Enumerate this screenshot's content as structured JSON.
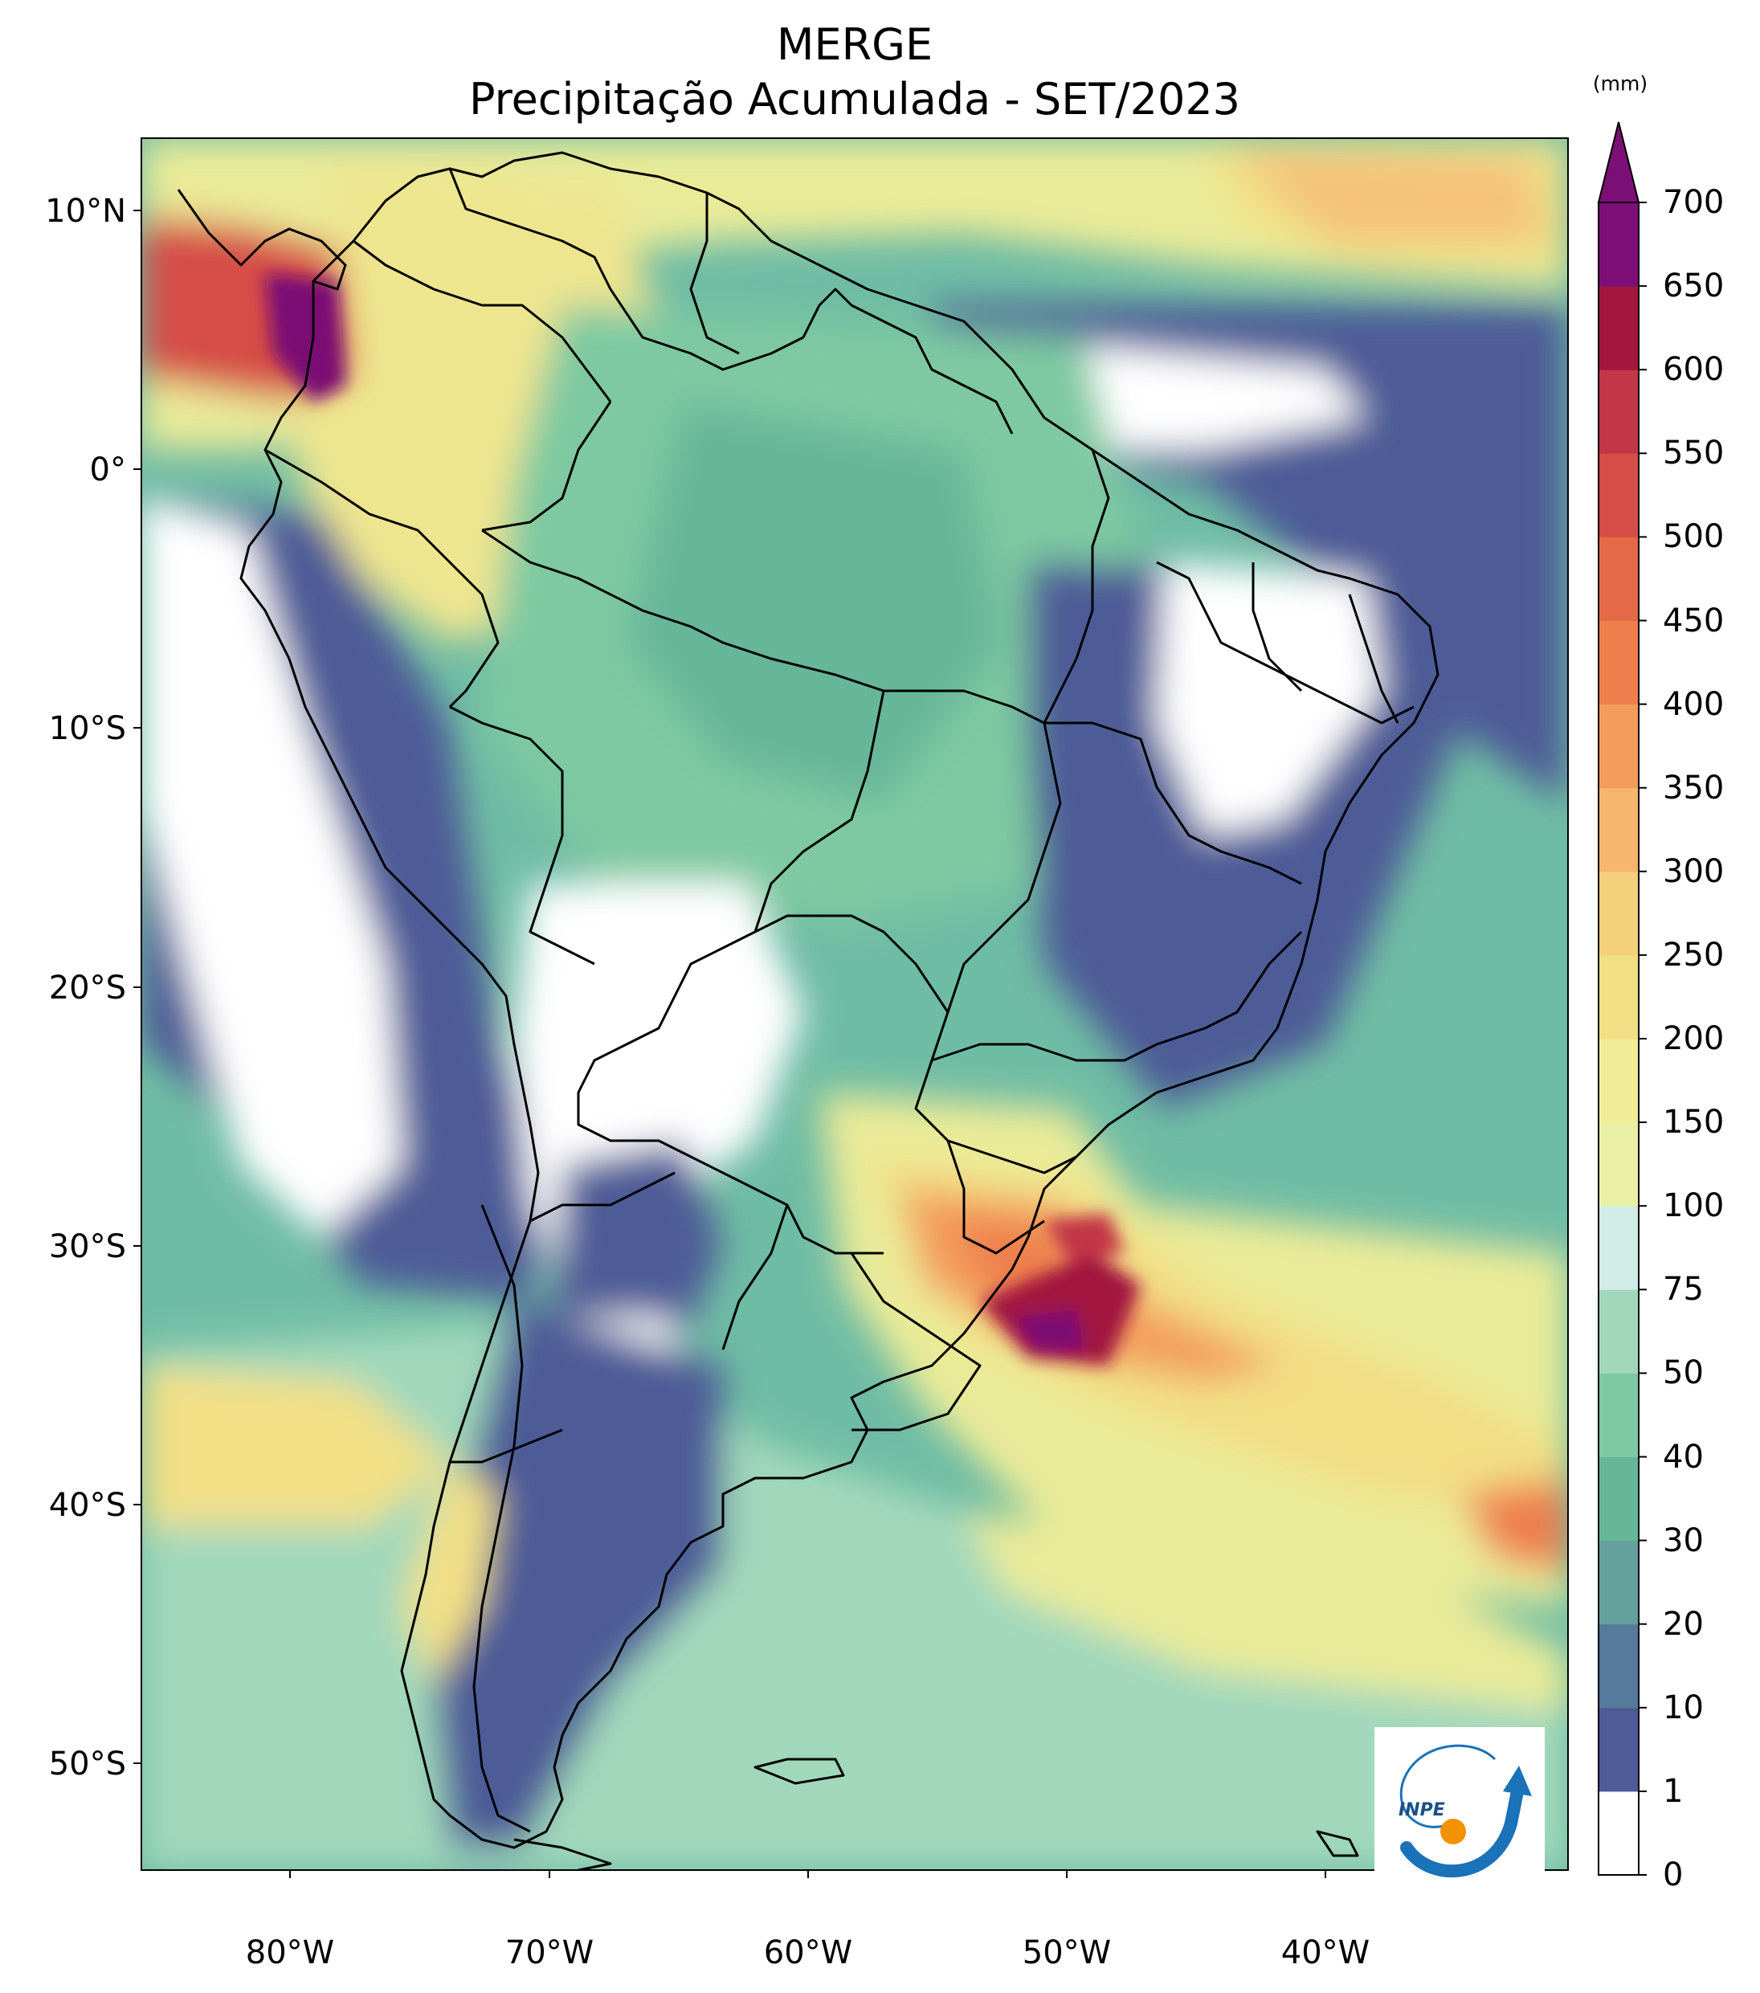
{
  "title": "MERGE",
  "subtitle": "Precipitação Acumulada - SET/2023",
  "lat_labels": [
    "10°N",
    "0°",
    "10°S",
    "20°S",
    "30°S",
    "40°S",
    "50°S"
  ],
  "lon_labels": [
    "80°W",
    "70°W",
    "60°W",
    "50°W",
    "40°W"
  ],
  "colorbar": {
    "unit": "(mm)",
    "levels": [
      "0",
      "1",
      "10",
      "20",
      "30",
      "40",
      "50",
      "75",
      "100",
      "150",
      "200",
      "250",
      "300",
      "350",
      "400",
      "450",
      "500",
      "550",
      "600",
      "650",
      "700"
    ],
    "colors": [
      "#ffffff",
      "#4e5b97",
      "#567a9b",
      "#64a09c",
      "#66b69a",
      "#7ec9a1",
      "#a1d8bb",
      "#d1ece6",
      "#eaf0a6",
      "#f1ec98",
      "#f2de85",
      "#f5d07c",
      "#f6b66f",
      "#f39d5c",
      "#ee7f4d",
      "#e46947",
      "#d64d47",
      "#c33647",
      "#a3173f",
      "#7c0f75"
    ]
  },
  "logo": {
    "text": "INPE",
    "colors": [
      "#1a72b8",
      "#f39200"
    ]
  }
}
